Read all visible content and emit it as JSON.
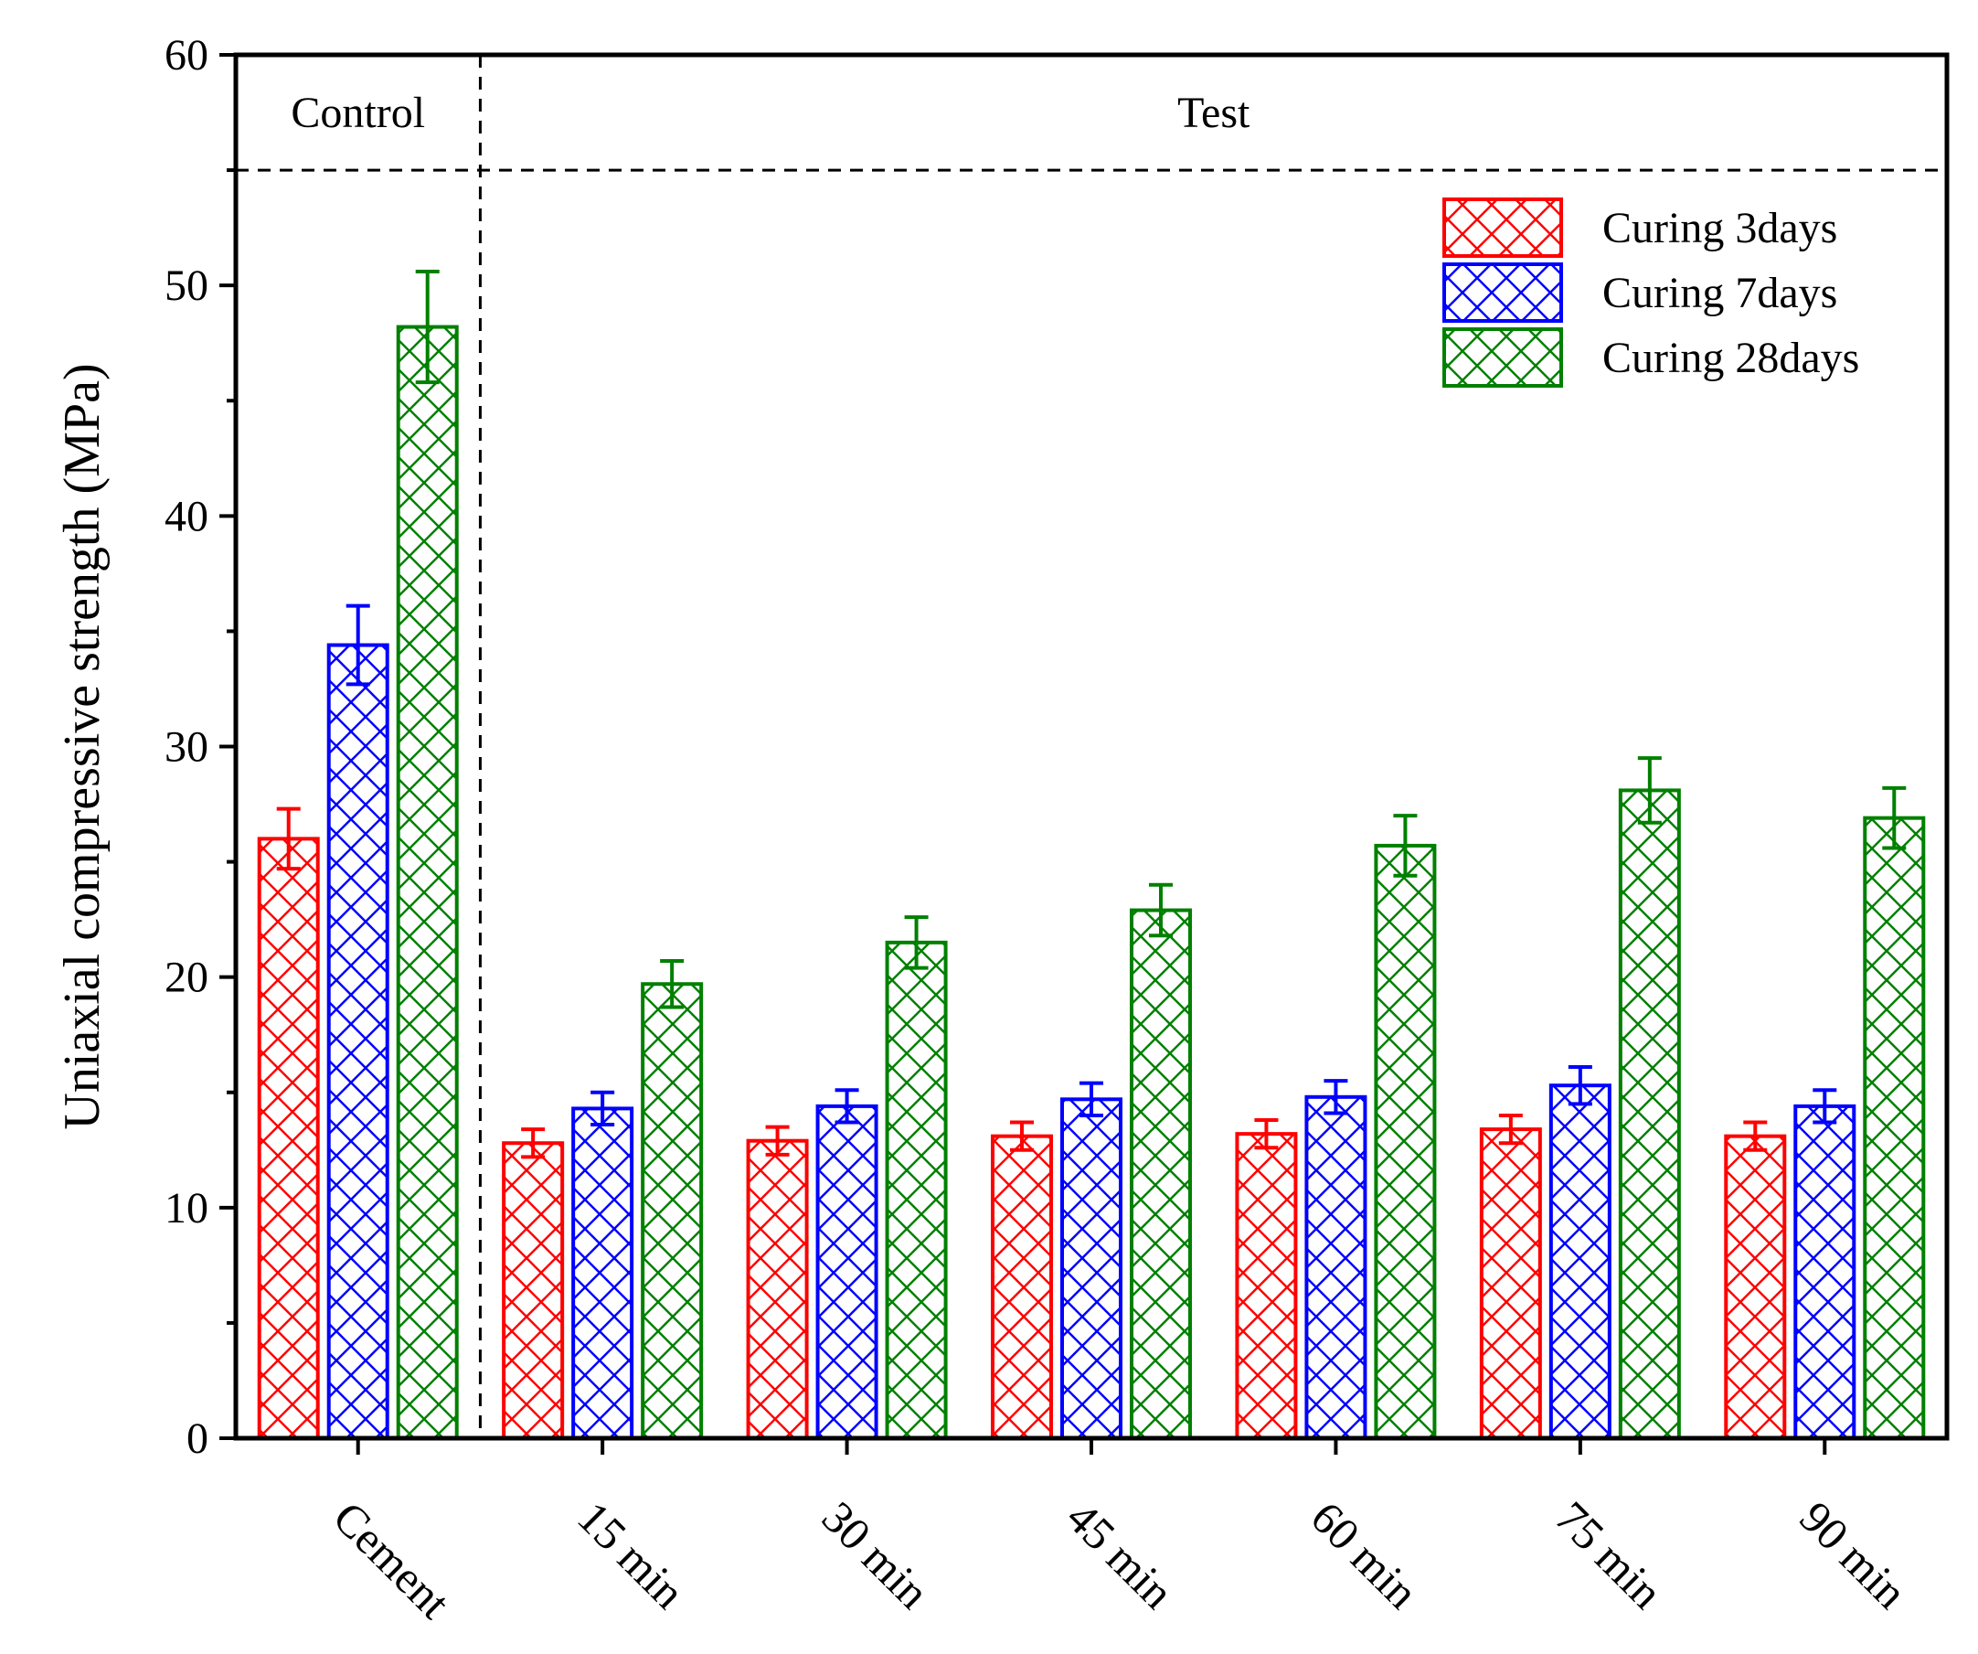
{
  "chart_data": {
    "type": "bar",
    "title": "",
    "xlabel": "",
    "ylabel": "Uniaxial compressive strength (MPa)",
    "ylim": [
      0,
      60
    ],
    "yticks": [
      0,
      10,
      20,
      30,
      40,
      50,
      60
    ],
    "grid": false,
    "legend_position": "top-right",
    "pattern": "crosshatch",
    "categories": [
      "Cement",
      "15 min",
      "30 min",
      "45 min",
      "60 min",
      "75 min",
      "90 min"
    ],
    "series": [
      {
        "name": "Curing 3days",
        "color": "#ff0000",
        "values": [
          26.0,
          12.8,
          12.9,
          13.1,
          13.2,
          13.4,
          13.1
        ],
        "errors": [
          1.3,
          0.6,
          0.6,
          0.6,
          0.6,
          0.6,
          0.6
        ]
      },
      {
        "name": "Curing 7days",
        "color": "#0000ff",
        "values": [
          34.4,
          14.3,
          14.4,
          14.7,
          14.8,
          15.3,
          14.4
        ],
        "errors": [
          1.7,
          0.7,
          0.7,
          0.7,
          0.7,
          0.8,
          0.7
        ]
      },
      {
        "name": "Curing 28days",
        "color": "#008000",
        "values": [
          48.2,
          19.7,
          21.5,
          22.9,
          25.7,
          28.1,
          26.9
        ],
        "errors": [
          2.4,
          1.0,
          1.1,
          1.1,
          1.3,
          1.4,
          1.3
        ]
      }
    ],
    "regions": [
      {
        "label": "Control",
        "categories": [
          "Cement"
        ]
      },
      {
        "label": "Test",
        "categories": [
          "15 min",
          "30 min",
          "45 min",
          "60 min",
          "75 min",
          "90 min"
        ]
      }
    ],
    "reference_line_y": 55
  }
}
